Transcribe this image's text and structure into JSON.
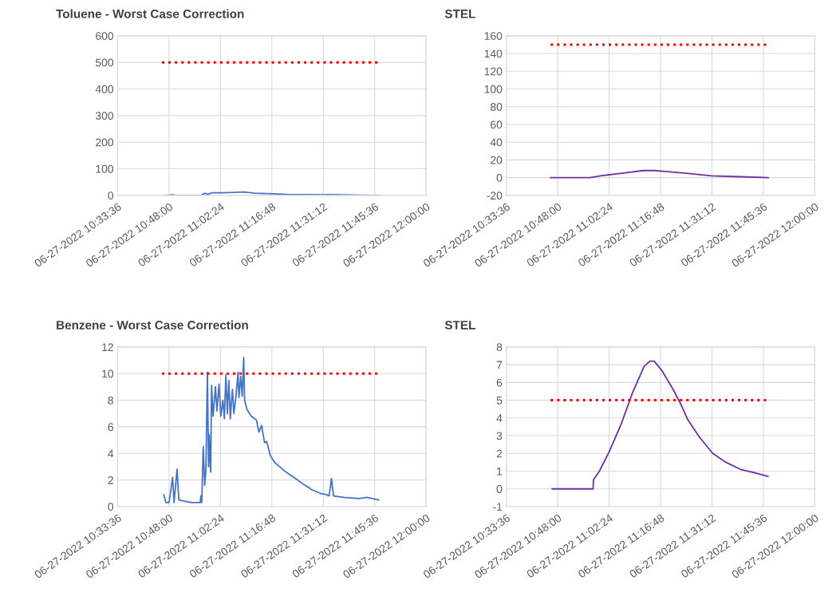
{
  "chart_data": [
    {
      "type": "line",
      "title": "Toluene - Worst Case Correction",
      "xlim": [
        "2022-06-27T10:33:36",
        "2022-06-27T12:00:00"
      ],
      "xticks": [
        {
          "value": "2022-06-27T10:33:36",
          "label": "06-27-2022 10:33:36"
        },
        {
          "value": "2022-06-27T10:48:00",
          "label": "06-27-2022 10:48:00"
        },
        {
          "value": "2022-06-27T11:02:24",
          "label": "06-27-2022 11:02:24"
        },
        {
          "value": "2022-06-27T11:16:48",
          "label": "06-27-2022 11:16:48"
        },
        {
          "value": "2022-06-27T11:31:12",
          "label": "06-27-2022 11:31:12"
        },
        {
          "value": "2022-06-27T11:45:36",
          "label": "06-27-2022 11:45:36"
        },
        {
          "value": "2022-06-27T12:00:00",
          "label": "06-27-2022 12:00:00"
        }
      ],
      "ylim": [
        0,
        600
      ],
      "yticks": [
        0,
        100,
        200,
        300,
        400,
        500,
        600
      ],
      "grid": true,
      "series": [
        {
          "color": "#4472c4",
          "line_style": "solid",
          "x": [
            "2022-06-27T10:47",
            "2022-06-27T10:48",
            "2022-06-27T10:49",
            "2022-06-27T10:50",
            "2022-06-27T10:57",
            "2022-06-27T10:58",
            "2022-06-27T10:59",
            "2022-06-27T11:00",
            "2022-06-27T11:03",
            "2022-06-27T11:06",
            "2022-06-27T11:09",
            "2022-06-27T11:10",
            "2022-06-27T11:12",
            "2022-06-27T11:17",
            "2022-06-27T11:21",
            "2022-06-27T11:27",
            "2022-06-27T11:31",
            "2022-06-27T11:33",
            "2022-06-27T11:36",
            "2022-06-27T11:42",
            "2022-06-27T11:47"
          ],
          "values": [
            0,
            1,
            2,
            0,
            0,
            8,
            4,
            10,
            10,
            11,
            13,
            11,
            8,
            6,
            4,
            3,
            2,
            3,
            2,
            1,
            0
          ]
        },
        {
          "color": "#ff0000",
          "line_style": "dotted",
          "x": [
            "2022-06-27T10:46",
            "2022-06-27T11:47"
          ],
          "values": [
            500,
            500
          ]
        }
      ]
    },
    {
      "type": "line",
      "title": "STEL",
      "xlim": [
        "2022-06-27T10:33:36",
        "2022-06-27T12:00:00"
      ],
      "xticks": [
        {
          "value": "2022-06-27T10:33:36",
          "label": "06-27-2022 10:33:36"
        },
        {
          "value": "2022-06-27T10:48:00",
          "label": "06-27-2022 10:48:00"
        },
        {
          "value": "2022-06-27T11:02:24",
          "label": "06-27-2022 11:02:24"
        },
        {
          "value": "2022-06-27T11:16:48",
          "label": "06-27-2022 11:16:48"
        },
        {
          "value": "2022-06-27T11:31:12",
          "label": "06-27-2022 11:31:12"
        },
        {
          "value": "2022-06-27T11:45:36",
          "label": "06-27-2022 11:45:36"
        },
        {
          "value": "2022-06-27T12:00:00",
          "label": "06-27-2022 12:00:00"
        }
      ],
      "ylim": [
        -20,
        160
      ],
      "yticks": [
        -20,
        0,
        20,
        40,
        60,
        80,
        100,
        120,
        140,
        160
      ],
      "grid": true,
      "series": [
        {
          "color": "#7030a0",
          "line_style": "solid",
          "x": [
            "2022-06-27T10:46",
            "2022-06-27T10:57",
            "2022-06-27T11:00",
            "2022-06-27T11:06",
            "2022-06-27T11:12",
            "2022-06-27T11:15",
            "2022-06-27T11:18",
            "2022-06-27T11:24",
            "2022-06-27T11:31",
            "2022-06-27T11:39",
            "2022-06-27T11:47"
          ],
          "values": [
            0,
            0,
            2,
            5,
            8,
            8,
            7,
            5,
            2,
            1,
            0
          ]
        },
        {
          "color": "#ff0000",
          "line_style": "dotted",
          "x": [
            "2022-06-27T10:46",
            "2022-06-27T11:47"
          ],
          "values": [
            150,
            150
          ]
        }
      ]
    },
    {
      "type": "line",
      "title": "Benzene - Worst Case Correction",
      "xlim": [
        "2022-06-27T10:33:36",
        "2022-06-27T12:00:00"
      ],
      "xticks": [
        {
          "value": "2022-06-27T10:33:36",
          "label": "06-27-2022 10:33:36"
        },
        {
          "value": "2022-06-27T10:48:00",
          "label": "06-27-2022 10:48:00"
        },
        {
          "value": "2022-06-27T11:02:24",
          "label": "06-27-2022 11:02:24"
        },
        {
          "value": "2022-06-27T11:16:48",
          "label": "06-27-2022 11:16:48"
        },
        {
          "value": "2022-06-27T11:31:12",
          "label": "06-27-2022 11:31:12"
        },
        {
          "value": "2022-06-27T11:45:36",
          "label": "06-27-2022 11:45:36"
        },
        {
          "value": "2022-06-27T12:00:00",
          "label": "06-27-2022 12:00:00"
        }
      ],
      "ylim": [
        0,
        12
      ],
      "yticks": [
        0,
        2,
        4,
        6,
        8,
        10,
        12
      ],
      "grid": true,
      "series": [
        {
          "color": "#4472c4",
          "line_style": "solid",
          "x": [
            "2022-06-27T10:46:30",
            "2022-06-27T10:47:10",
            "2022-06-27T10:48:00",
            "2022-06-27T10:49:00",
            "2022-06-27T10:49:25",
            "2022-06-27T10:50:15",
            "2022-06-27T10:50:45",
            "2022-06-27T10:52:35",
            "2022-06-27T10:54:20",
            "2022-06-27T10:56:45",
            "2022-06-27T10:56:55",
            "2022-06-27T10:57:10",
            "2022-06-27T10:57:35",
            "2022-06-27T10:58:00",
            "2022-06-27T10:58:20",
            "2022-06-27T10:58:45",
            "2022-06-27T10:59:05",
            "2022-06-27T10:59:15",
            "2022-06-27T10:59:40",
            "2022-06-27T10:59:55",
            "2022-06-27T11:00:20",
            "2022-06-27T11:01:00",
            "2022-06-27T11:01:25",
            "2022-06-27T11:02:00",
            "2022-06-27T11:02:30",
            "2022-06-27T11:03:05",
            "2022-06-27T11:03:30",
            "2022-06-27T11:03:55",
            "2022-06-27T11:04:20",
            "2022-06-27T11:04:45",
            "2022-06-27T11:05:10",
            "2022-06-27T11:05:45",
            "2022-06-27T11:06:10",
            "2022-06-27T11:06:50",
            "2022-06-27T11:07:20",
            "2022-06-27T11:07:35",
            "2022-06-27T11:08:05",
            "2022-06-27T11:08:30",
            "2022-06-27T11:08:55",
            "2022-06-27T11:09:10",
            "2022-06-27T11:09:50",
            "2022-06-27T11:11:00",
            "2022-06-27T11:12:30",
            "2022-06-27T11:13:10",
            "2022-06-27T11:13:55",
            "2022-06-27T11:14:45",
            "2022-06-27T11:15:20",
            "2022-06-27T11:16:25",
            "2022-06-27T11:17:40",
            "2022-06-27T11:20:15",
            "2022-06-27T11:22:20",
            "2022-06-27T11:24:00",
            "2022-06-27T11:26:05",
            "2022-06-27T11:27:20",
            "2022-06-27T11:27:45",
            "2022-06-27T11:30:20",
            "2022-06-27T11:32:00",
            "2022-06-27T11:32:50",
            "2022-06-27T11:33:30",
            "2022-06-27T11:34:05",
            "2022-06-27T11:37:00",
            "2022-06-27T11:41:10",
            "2022-06-27T11:43:25",
            "2022-06-27T11:46:45"
          ],
          "values": [
            0.9,
            0.3,
            0.3,
            2.2,
            0.3,
            2.8,
            0.5,
            0.4,
            0.3,
            0.3,
            0.8,
            0.3,
            4.5,
            1.6,
            2.8,
            10.1,
            3,
            5.4,
            2.6,
            9.1,
            6.8,
            9,
            7.2,
            9.2,
            6.8,
            8,
            6.6,
            9.9,
            7,
            9.5,
            6.6,
            8.8,
            7,
            8.5,
            10.1,
            8.2,
            9.8,
            8.3,
            11.2,
            8,
            7.3,
            6.8,
            6.5,
            5.6,
            6.1,
            4.8,
            4.9,
            3.8,
            3.3,
            2.7,
            2.3,
            2,
            1.6,
            1.4,
            1.3,
            1,
            0.9,
            0.8,
            2.1,
            0.8,
            0.7,
            0.6,
            0.7,
            0.5
          ]
        },
        {
          "color": "#ff0000",
          "line_style": "dotted",
          "x": [
            "2022-06-27T10:46",
            "2022-06-27T11:47"
          ],
          "values": [
            10,
            10
          ]
        }
      ]
    },
    {
      "type": "line",
      "title": "STEL",
      "xlim": [
        "2022-06-27T10:33:36",
        "2022-06-27T12:00:00"
      ],
      "xticks": [
        {
          "value": "2022-06-27T10:33:36",
          "label": "06-27-2022 10:33:36"
        },
        {
          "value": "2022-06-27T10:48:00",
          "label": "06-27-2022 10:48:00"
        },
        {
          "value": "2022-06-27T11:02:24",
          "label": "06-27-2022 11:02:24"
        },
        {
          "value": "2022-06-27T11:16:48",
          "label": "06-27-2022 11:16:48"
        },
        {
          "value": "2022-06-27T11:31:12",
          "label": "06-27-2022 11:31:12"
        },
        {
          "value": "2022-06-27T11:45:36",
          "label": "06-27-2022 11:45:36"
        },
        {
          "value": "2022-06-27T12:00:00",
          "label": "06-27-2022 12:00:00"
        }
      ],
      "ylim": [
        -1,
        8
      ],
      "yticks": [
        -1,
        0,
        1,
        2,
        3,
        4,
        5,
        6,
        7,
        8
      ],
      "grid": true,
      "series": [
        {
          "color": "#7030a0",
          "line_style": "solid",
          "x": [
            "2022-06-27T10:46:25",
            "2022-06-27T10:57:55",
            "2022-06-27T10:58:00",
            "2022-06-27T10:59:40",
            "2022-06-27T11:02:25",
            "2022-06-27T11:05:40",
            "2022-06-27T11:08:55",
            "2022-06-27T11:12:10",
            "2022-06-27T11:13:50",
            "2022-06-27T11:15:00",
            "2022-06-27T11:17:05",
            "2022-06-27T11:20:20",
            "2022-06-27T11:22:25",
            "2022-06-27T11:24:25",
            "2022-06-27T11:27:45",
            "2022-06-27T11:31:25",
            "2022-06-27T11:35:05",
            "2022-06-27T11:39:10",
            "2022-06-27T11:43:15",
            "2022-06-27T11:46:55"
          ],
          "values": [
            0,
            0,
            0.5,
            1,
            2.1,
            3.6,
            5.4,
            6.9,
            7.2,
            7.2,
            6.7,
            5.6,
            4.8,
            3.9,
            2.9,
            2,
            1.5,
            1.1,
            0.9,
            0.7
          ]
        },
        {
          "color": "#ff0000",
          "line_style": "dotted",
          "x": [
            "2022-06-27T10:46",
            "2022-06-27T11:47"
          ],
          "values": [
            5,
            5
          ]
        }
      ]
    }
  ]
}
